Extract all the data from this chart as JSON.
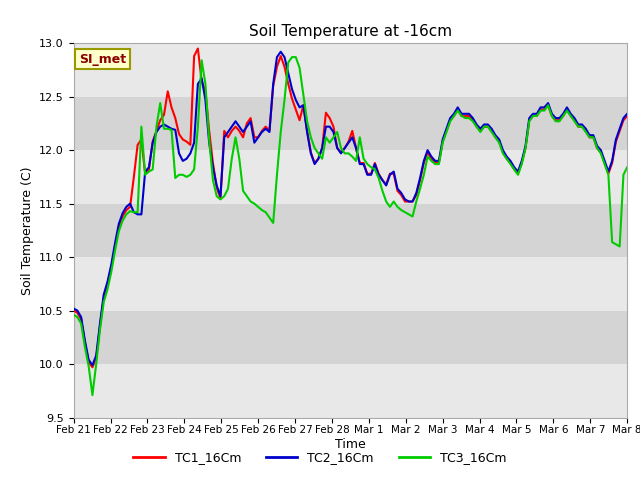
{
  "title": "Soil Temperature at -16cm",
  "xlabel": "Time",
  "ylabel": "Soil Temperature (C)",
  "ylim": [
    9.5,
    13.0
  ],
  "yticks": [
    9.5,
    10.0,
    10.5,
    11.0,
    11.5,
    12.0,
    12.5,
    13.0
  ],
  "annotation_text": "SI_met",
  "line_colors": [
    "#ff0000",
    "#0000cc",
    "#00cc00"
  ],
  "line_labels": [
    "TC1_16Cm",
    "TC2_16Cm",
    "TC3_16Cm"
  ],
  "line_width": 1.5,
  "x_tick_labels": [
    "Feb 21",
    "Feb 22",
    "Feb 23",
    "Feb 24",
    "Feb 25",
    "Feb 26",
    "Feb 27",
    "Feb 28",
    "Mar 1",
    "Mar 2",
    "Mar 3",
    "Mar 4",
    "Mar 5",
    "Mar 6",
    "Mar 7",
    "Mar 8"
  ],
  "band_colors": [
    "#e8e8e8",
    "#d4d4d4"
  ],
  "tc1": [
    10.5,
    10.48,
    10.42,
    10.2,
    10.02,
    9.97,
    10.06,
    10.35,
    10.62,
    10.74,
    10.9,
    11.1,
    11.28,
    11.38,
    11.44,
    11.47,
    11.75,
    12.05,
    12.1,
    11.78,
    11.82,
    12.08,
    12.18,
    12.28,
    12.33,
    12.55,
    12.4,
    12.3,
    12.15,
    12.1,
    12.08,
    12.05,
    12.88,
    12.95,
    12.65,
    12.55,
    12.18,
    11.88,
    11.65,
    11.55,
    12.18,
    12.12,
    12.18,
    12.22,
    12.18,
    12.12,
    12.25,
    12.3,
    12.12,
    12.12,
    12.18,
    12.22,
    12.18,
    12.6,
    12.78,
    12.88,
    12.78,
    12.62,
    12.48,
    12.38,
    12.28,
    12.42,
    12.18,
    11.98,
    11.88,
    11.92,
    12.02,
    12.35,
    12.3,
    12.22,
    12.02,
    11.98,
    12.02,
    12.08,
    12.18,
    12.02,
    11.88,
    11.88,
    11.78,
    11.78,
    11.88,
    11.78,
    11.72,
    11.68,
    11.78,
    11.78,
    11.62,
    11.58,
    11.52,
    11.52,
    11.52,
    11.58,
    11.72,
    11.88,
    11.98,
    11.92,
    11.88,
    11.88,
    12.08,
    12.18,
    12.28,
    12.32,
    12.38,
    12.32,
    12.32,
    12.32,
    12.28,
    12.22,
    12.18,
    12.22,
    12.22,
    12.18,
    12.12,
    12.08,
    11.98,
    11.92,
    11.88,
    11.82,
    11.78,
    11.88,
    12.02,
    12.28,
    12.32,
    12.32,
    12.38,
    12.38,
    12.42,
    12.32,
    12.28,
    12.28,
    12.32,
    12.38,
    12.32,
    12.28,
    12.22,
    12.22,
    12.18,
    12.12,
    12.12,
    12.02,
    11.98,
    11.88,
    11.78,
    11.88,
    12.08,
    12.18,
    12.28,
    12.32
  ],
  "tc2": [
    10.52,
    10.5,
    10.44,
    10.22,
    10.04,
    9.99,
    10.08,
    10.38,
    10.65,
    10.77,
    10.93,
    11.13,
    11.31,
    11.41,
    11.47,
    11.5,
    11.42,
    11.4,
    11.4,
    11.8,
    11.84,
    12.07,
    12.17,
    12.22,
    12.24,
    12.22,
    12.2,
    12.19,
    11.97,
    11.9,
    11.92,
    11.97,
    12.07,
    12.62,
    12.67,
    12.47,
    12.07,
    11.84,
    11.67,
    11.57,
    12.12,
    12.17,
    12.22,
    12.27,
    12.22,
    12.17,
    12.22,
    12.27,
    12.07,
    12.12,
    12.17,
    12.2,
    12.17,
    12.62,
    12.87,
    12.92,
    12.87,
    12.72,
    12.57,
    12.47,
    12.4,
    12.42,
    12.17,
    11.97,
    11.87,
    11.92,
    12.02,
    12.22,
    12.22,
    12.17,
    12.02,
    11.97,
    12.02,
    12.07,
    12.12,
    12.02,
    11.87,
    11.87,
    11.77,
    11.77,
    11.87,
    11.77,
    11.72,
    11.67,
    11.77,
    11.8,
    11.64,
    11.6,
    11.54,
    11.52,
    11.52,
    11.6,
    11.74,
    11.9,
    12.0,
    11.94,
    11.9,
    11.9,
    12.1,
    12.2,
    12.3,
    12.34,
    12.4,
    12.34,
    12.34,
    12.34,
    12.3,
    12.24,
    12.2,
    12.24,
    12.24,
    12.2,
    12.14,
    12.1,
    12.0,
    11.94,
    11.9,
    11.84,
    11.8,
    11.9,
    12.04,
    12.3,
    12.34,
    12.34,
    12.4,
    12.4,
    12.44,
    12.34,
    12.3,
    12.3,
    12.34,
    12.4,
    12.34,
    12.3,
    12.24,
    12.24,
    12.2,
    12.14,
    12.14,
    12.04,
    12.0,
    11.9,
    11.8,
    11.9,
    12.1,
    12.2,
    12.3,
    12.34
  ],
  "tc3": [
    10.46,
    10.44,
    10.38,
    10.16,
    9.98,
    9.71,
    10.0,
    10.32,
    10.58,
    10.7,
    10.86,
    11.06,
    11.24,
    11.34,
    11.4,
    11.43,
    11.42,
    11.42,
    12.22,
    11.77,
    11.8,
    11.82,
    12.22,
    12.44,
    12.2,
    12.2,
    12.19,
    11.74,
    11.77,
    11.77,
    11.75,
    11.77,
    11.82,
    12.22,
    12.84,
    12.62,
    12.1,
    11.72,
    11.57,
    11.54,
    11.57,
    11.64,
    11.92,
    12.12,
    11.92,
    11.62,
    11.57,
    11.52,
    11.5,
    11.47,
    11.44,
    11.42,
    11.37,
    11.32,
    11.77,
    12.17,
    12.47,
    12.82,
    12.87,
    12.87,
    12.77,
    12.52,
    12.27,
    12.12,
    12.02,
    11.97,
    11.92,
    12.12,
    12.07,
    12.12,
    12.17,
    12.02,
    11.97,
    11.97,
    11.94,
    11.9,
    12.12,
    11.92,
    11.87,
    11.84,
    11.82,
    11.74,
    11.62,
    11.52,
    11.47,
    11.52,
    11.47,
    11.44,
    11.42,
    11.4,
    11.38,
    11.52,
    11.64,
    11.77,
    11.94,
    11.9,
    11.87,
    11.87,
    12.07,
    12.17,
    12.27,
    12.32,
    12.37,
    12.32,
    12.3,
    12.3,
    12.27,
    12.22,
    12.17,
    12.22,
    12.22,
    12.17,
    12.12,
    12.07,
    11.97,
    11.92,
    11.87,
    11.82,
    11.77,
    11.87,
    12.02,
    12.27,
    12.32,
    12.32,
    12.37,
    12.37,
    12.42,
    12.32,
    12.27,
    12.27,
    12.32,
    12.37,
    12.32,
    12.27,
    12.22,
    12.22,
    12.17,
    12.12,
    12.12,
    12.02,
    11.97,
    11.87,
    11.77,
    11.14,
    11.12,
    11.1,
    11.77,
    11.84
  ]
}
